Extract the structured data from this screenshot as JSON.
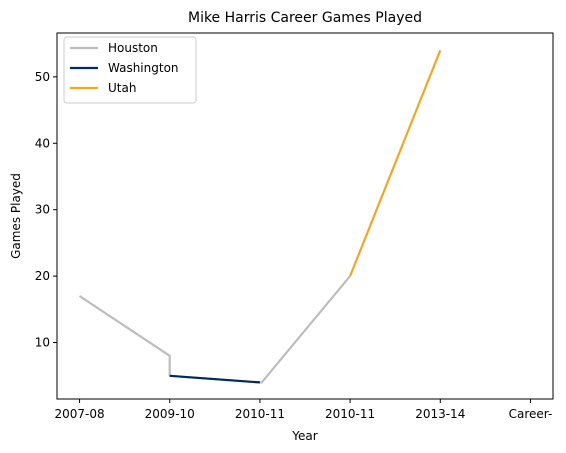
{
  "chart_data": {
    "type": "line",
    "title": "Mike Harris  Career Games Played",
    "xlabel": "Year",
    "ylabel": "Games Played",
    "x_tick_labels": [
      "2007-08",
      "2009-10",
      "2010-11",
      "2010-11",
      "2013-14",
      "Career-"
    ],
    "y_ticks": [
      10,
      20,
      30,
      40,
      50
    ],
    "ylim": [
      1.5,
      56.6
    ],
    "xlim": [
      -0.25,
      5.25
    ],
    "grid": false,
    "legend_placement": "top-left",
    "series": [
      {
        "name": "Houston",
        "color": "#bdbdbd",
        "points": [
          [
            0,
            17
          ],
          [
            1,
            8
          ],
          [
            1,
            5
          ],
          [
            2,
            4
          ],
          [
            2.02,
            4
          ],
          [
            3,
            20
          ]
        ]
      },
      {
        "name": "Washington",
        "color": "#002b5c",
        "points": [
          [
            1,
            5
          ],
          [
            2,
            4
          ]
        ]
      },
      {
        "name": "Utah",
        "color": "#f5a623",
        "points": [
          [
            3,
            20
          ],
          [
            4,
            54
          ]
        ]
      }
    ]
  }
}
